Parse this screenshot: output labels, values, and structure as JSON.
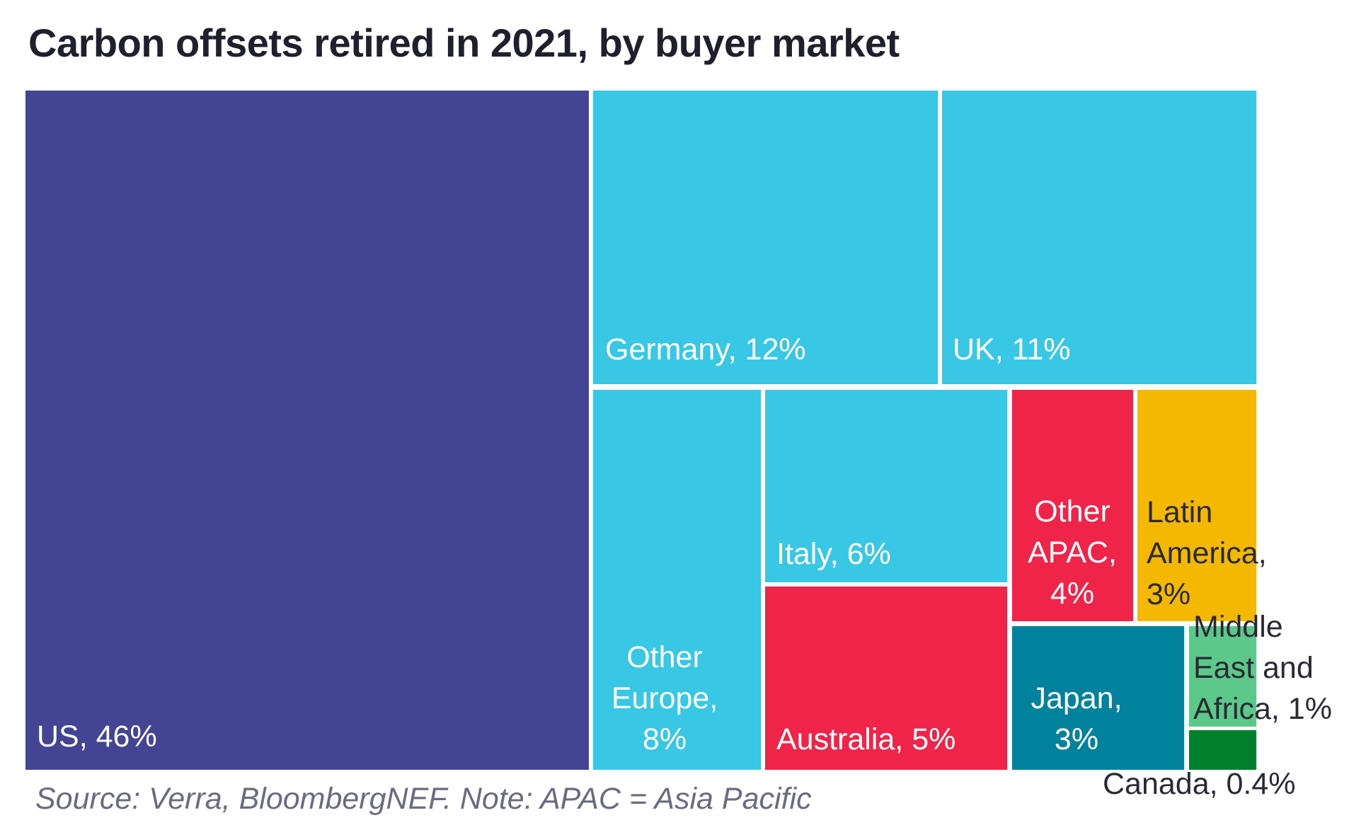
{
  "chart_data": {
    "type": "treemap",
    "title": "Carbon offsets retired in 2021, by buyer market",
    "source": "Source: Verra, BloombergNEF. Note: APAC = Asia Pacific",
    "series": [
      {
        "name": "US",
        "value": 46,
        "label": "US, 46%",
        "color": "#444494",
        "text_color": "#ffffff"
      },
      {
        "name": "Germany",
        "value": 12,
        "label": "Germany, 12%",
        "color": "#38c8e6",
        "text_color": "#ffffff"
      },
      {
        "name": "UK",
        "value": 11,
        "label": "UK, 11%",
        "color": "#38c8e6",
        "text_color": "#ffffff"
      },
      {
        "name": "Other Europe",
        "value": 8,
        "label": "Other Europe, 8%",
        "color": "#38c8e6",
        "text_color": "#ffffff"
      },
      {
        "name": "Italy",
        "value": 6,
        "label": "Italy, 6%",
        "color": "#38c8e6",
        "text_color": "#ffffff"
      },
      {
        "name": "Australia",
        "value": 5,
        "label": "Australia, 5%",
        "color": "#f02348",
        "text_color": "#ffffff"
      },
      {
        "name": "Other APAC",
        "value": 4,
        "label": "Other APAC, 4%",
        "color": "#f02348",
        "text_color": "#ffffff"
      },
      {
        "name": "Latin America",
        "value": 3,
        "label": "Latin America, 3%",
        "color": "#f5b800",
        "text_color": "#2a2a35"
      },
      {
        "name": "Japan",
        "value": 3,
        "label": "Japan, 3%",
        "color": "#00829c",
        "text_color": "#ffffff"
      },
      {
        "name": "Middle East and Africa",
        "value": 1,
        "label": "Middle East and Africa, 1%",
        "color": "#5cc88a",
        "text_color": "#2a2a35"
      },
      {
        "name": "Canada",
        "value": 0.4,
        "label": "Canada, 0.4%",
        "color": "#007f2c",
        "text_color": "#2a2a35"
      }
    ]
  }
}
